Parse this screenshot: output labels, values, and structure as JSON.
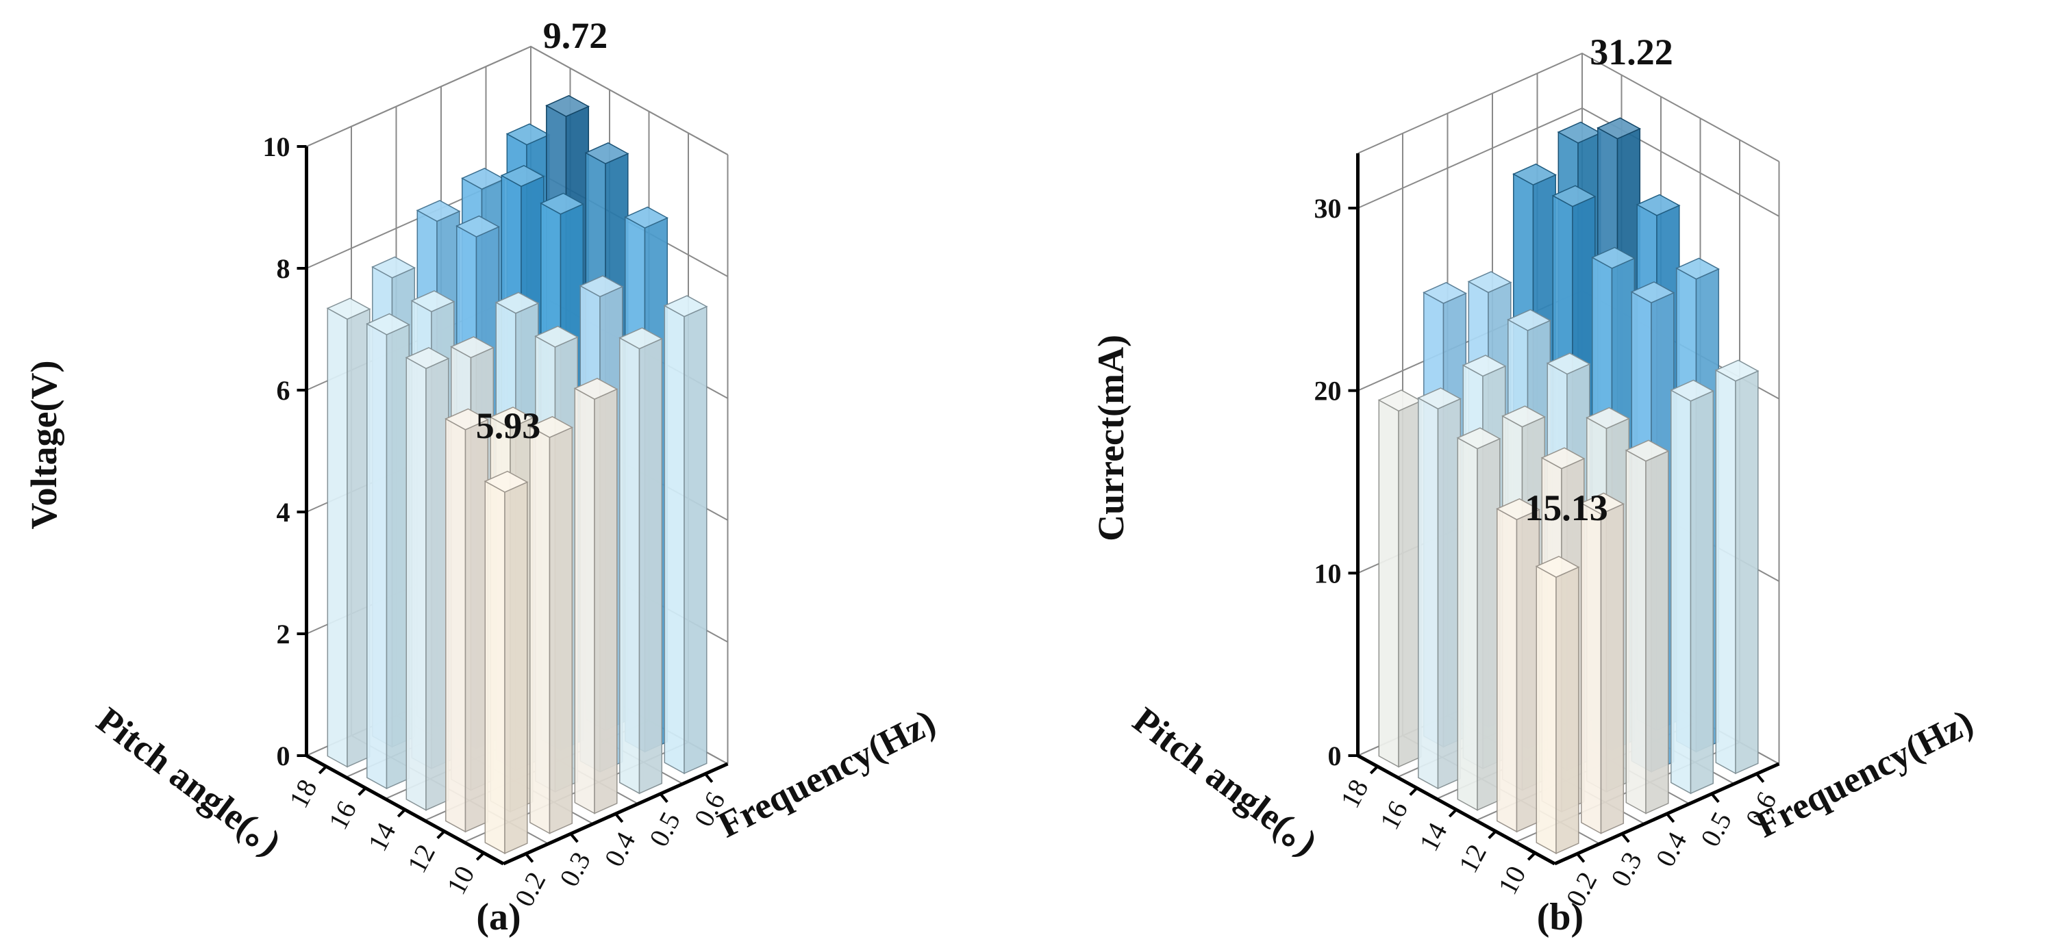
{
  "chart_data": [
    {
      "type": "bar3d",
      "panel_label": "(a)",
      "zlabel": "Voltage(V)",
      "xlabel": "Frequency(Hz)",
      "ylabel": "Pitch angle(。)",
      "zlim": [
        0,
        10
      ],
      "zticks": [
        "0",
        "2",
        "4",
        "6",
        "8",
        "10"
      ],
      "x_categories": [
        "0.2",
        "0.3",
        "0.4",
        "0.5",
        "0.6"
      ],
      "y_categories": [
        "10",
        "12",
        "14",
        "16",
        "18"
      ],
      "values": [
        [
          5.93,
          6.6,
          7.25,
          7.45,
          7.35
        ],
        [
          6.5,
          6.3,
          7.1,
          7.5,
          7.7
        ],
        [
          6.8,
          7.3,
          7.5,
          8.4,
          8.3
        ],
        [
          7.3,
          7.8,
          8.8,
          8.9,
          8.5
        ],
        [
          7.5,
          8.6,
          9.3,
          9.72,
          8.9
        ]
      ],
      "annotations": [
        {
          "text": "5.93"
        },
        {
          "text": "9.72"
        }
      ]
    },
    {
      "type": "bar3d",
      "panel_label": "(b)",
      "zlabel": "Currect(mA)",
      "xlabel": "Frequency(Hz)",
      "ylabel": "Pitch angle(。)",
      "zlim": [
        0,
        33
      ],
      "zticks": [
        "0",
        "10",
        "20",
        "30"
      ],
      "x_categories": [
        "0.2",
        "0.3",
        "0.4",
        "0.5",
        "0.6"
      ],
      "y_categories": [
        "10",
        "12",
        "14",
        "16",
        "18"
      ],
      "values": [
        [
          15.13,
          17.1,
          19.8,
          20.8,
          19.5
        ],
        [
          17.5,
          18.8,
          19.9,
          21.5,
          24.3
        ],
        [
          19.3,
          19.9,
          21.7,
          22.9,
          23.8
        ],
        [
          21.5,
          25.7,
          26.4,
          28.6,
          28.6
        ],
        [
          21.5,
          25.9,
          28.2,
          31.22,
          29.8
        ]
      ],
      "annotations": [
        {
          "text": "15.13"
        },
        {
          "text": "31.22"
        }
      ]
    }
  ]
}
